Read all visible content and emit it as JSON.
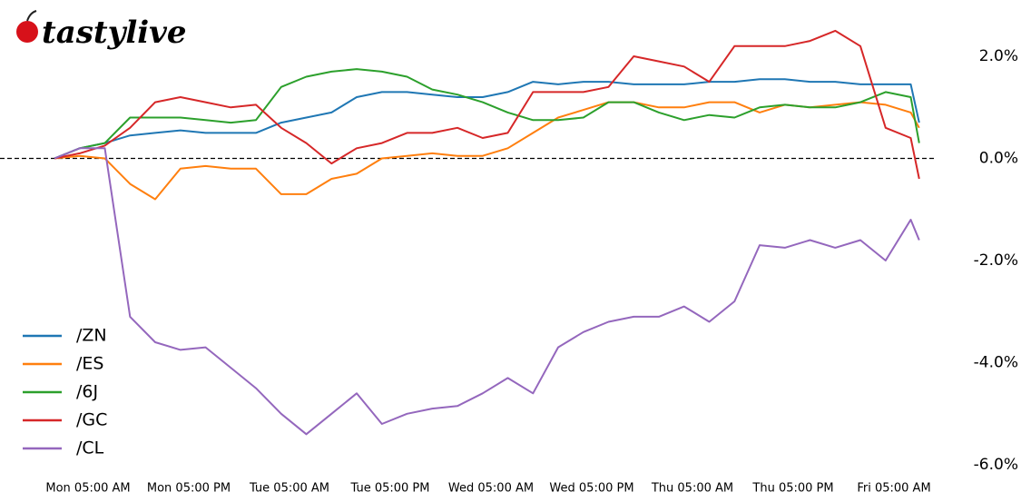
{
  "brand": "tastylive",
  "chart_data": {
    "type": "line",
    "x": [
      1,
      4,
      7,
      10,
      13,
      16,
      19,
      22,
      25,
      28,
      31,
      34,
      37,
      40,
      43,
      46,
      49,
      52,
      55,
      58,
      61,
      64,
      67,
      70,
      73,
      76,
      79,
      82,
      85,
      88,
      91,
      94,
      97,
      100,
      103,
      104
    ],
    "xlim": [
      0,
      105
    ],
    "xticks": [
      {
        "value": 5,
        "label": "Mon 05:00 AM"
      },
      {
        "value": 17,
        "label": "Mon 05:00 PM"
      },
      {
        "value": 29,
        "label": "Tue 05:00 AM"
      },
      {
        "value": 41,
        "label": "Tue 05:00 PM"
      },
      {
        "value": 53,
        "label": "Wed 05:00 AM"
      },
      {
        "value": 65,
        "label": "Wed 05:00 PM"
      },
      {
        "value": 77,
        "label": "Thu 05:00 AM"
      },
      {
        "value": 89,
        "label": "Thu 05:00 PM"
      },
      {
        "value": 101,
        "label": "Fri 05:00 AM"
      }
    ],
    "ylim": [
      -6,
      2.8
    ],
    "yticks": [
      {
        "value": 2,
        "label": "2.0%"
      },
      {
        "value": 0,
        "label": "0.0%"
      },
      {
        "value": -2,
        "label": "-2.0%"
      },
      {
        "value": -4,
        "label": "-4.0%"
      },
      {
        "value": -6,
        "label": "-6.0%"
      }
    ],
    "legend": "lower left",
    "zero_line": true,
    "series": [
      {
        "name": "/ZN",
        "color": "#1f77b4",
        "values": [
          0.0,
          0.2,
          0.3,
          0.45,
          0.5,
          0.55,
          0.5,
          0.5,
          0.5,
          0.7,
          0.8,
          0.9,
          1.2,
          1.3,
          1.3,
          1.25,
          1.2,
          1.2,
          1.3,
          1.5,
          1.45,
          1.5,
          1.5,
          1.45,
          1.45,
          1.45,
          1.5,
          1.5,
          1.55,
          1.55,
          1.5,
          1.5,
          1.45,
          1.45,
          1.45,
          0.7
        ]
      },
      {
        "name": "/ES",
        "color": "#ff7f0e",
        "values": [
          0.0,
          0.05,
          0.0,
          -0.5,
          -0.8,
          -0.2,
          -0.15,
          -0.2,
          -0.2,
          -0.7,
          -0.7,
          -0.4,
          -0.3,
          0.0,
          0.05,
          0.1,
          0.05,
          0.05,
          0.2,
          0.5,
          0.8,
          0.95,
          1.1,
          1.1,
          1.0,
          1.0,
          1.1,
          1.1,
          0.9,
          1.05,
          1.0,
          1.05,
          1.1,
          1.05,
          0.9,
          0.6
        ]
      },
      {
        "name": "/6J",
        "color": "#2ca02c",
        "values": [
          0.0,
          0.2,
          0.3,
          0.8,
          0.8,
          0.8,
          0.75,
          0.7,
          0.75,
          1.4,
          1.6,
          1.7,
          1.75,
          1.7,
          1.6,
          1.35,
          1.25,
          1.1,
          0.9,
          0.75,
          0.75,
          0.8,
          1.1,
          1.1,
          0.9,
          0.75,
          0.85,
          0.8,
          1.0,
          1.05,
          1.0,
          1.0,
          1.1,
          1.3,
          1.2,
          0.3
        ]
      },
      {
        "name": "/GC",
        "color": "#d62728",
        "values": [
          0.0,
          0.1,
          0.25,
          0.6,
          1.1,
          1.2,
          1.1,
          1.0,
          1.05,
          0.6,
          0.3,
          -0.1,
          0.2,
          0.3,
          0.5,
          0.5,
          0.6,
          0.4,
          0.5,
          1.3,
          1.3,
          1.3,
          1.4,
          2.0,
          1.9,
          1.8,
          1.5,
          2.2,
          2.2,
          2.2,
          2.3,
          2.5,
          2.2,
          0.6,
          0.4,
          -0.4
        ]
      },
      {
        "name": "/CL",
        "color": "#9467bd",
        "values": [
          0.0,
          0.2,
          0.2,
          -3.1,
          -3.6,
          -3.75,
          -3.7,
          -4.1,
          -4.5,
          -5.0,
          -5.4,
          -5.0,
          -4.6,
          -5.2,
          -5.0,
          -4.9,
          -4.85,
          -4.6,
          -4.3,
          -4.6,
          -3.7,
          -3.4,
          -3.2,
          -3.1,
          -3.1,
          -2.9,
          -3.2,
          -2.8,
          -1.7,
          -1.75,
          -1.6,
          -1.75,
          -1.6,
          -2.0,
          -1.2,
          -1.6
        ]
      }
    ]
  }
}
